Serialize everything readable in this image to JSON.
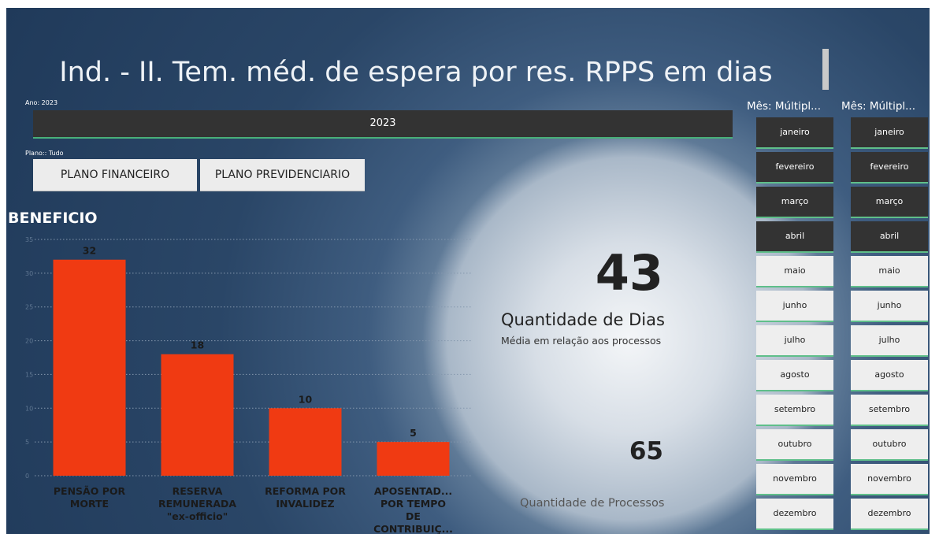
{
  "title": "Ind. - II. Tem. méd. de espera por res. RPPS em dias",
  "year_filter": {
    "label": "Ano: 2023",
    "option": "2023"
  },
  "plan_filter": {
    "label": "Plano:: Tudo",
    "options": [
      "PLANO FINANCEIRO",
      "PLANO PREVIDENCIARIO"
    ]
  },
  "chart_data": {
    "type": "bar",
    "title": "BENEFICIO",
    "categories": [
      "PENSÃO POR MORTE",
      "RESERVA REMUNERADA \"ex-officio\"",
      "REFORMA POR INVALIDEZ",
      "APOSENTAD... POR TEMPO DE CONTRIBUIÇ..."
    ],
    "values": [
      32,
      18,
      10,
      5
    ],
    "color": "#f03a12",
    "ylim": [
      0,
      35
    ],
    "yticks": [
      0,
      5,
      10,
      15,
      20,
      25,
      30,
      35
    ],
    "grid": true
  },
  "cards": [
    {
      "value": "43",
      "label": "Quantidade de Dias",
      "sublabel": "Média em relação aos processos"
    },
    {
      "value": "65",
      "label": "Quantidade de Processos"
    }
  ],
  "slicers": [
    {
      "header": "Mês: Múltipl...",
      "items": [
        "janeiro",
        "fevereiro",
        "março",
        "abril",
        "maio",
        "junho",
        "julho",
        "agosto",
        "setembro",
        "outubro",
        "novembro",
        "dezembro"
      ],
      "selected": [
        true,
        true,
        true,
        true,
        false,
        false,
        false,
        false,
        false,
        false,
        false,
        false
      ]
    },
    {
      "header": "Mês: Múltipl...",
      "items": [
        "janeiro",
        "fevereiro",
        "março",
        "abril",
        "maio",
        "junho",
        "julho",
        "agosto",
        "setembro",
        "outubro",
        "novembro",
        "dezembro"
      ],
      "selected": [
        true,
        true,
        true,
        true,
        false,
        false,
        false,
        false,
        false,
        false,
        false,
        false
      ]
    }
  ]
}
